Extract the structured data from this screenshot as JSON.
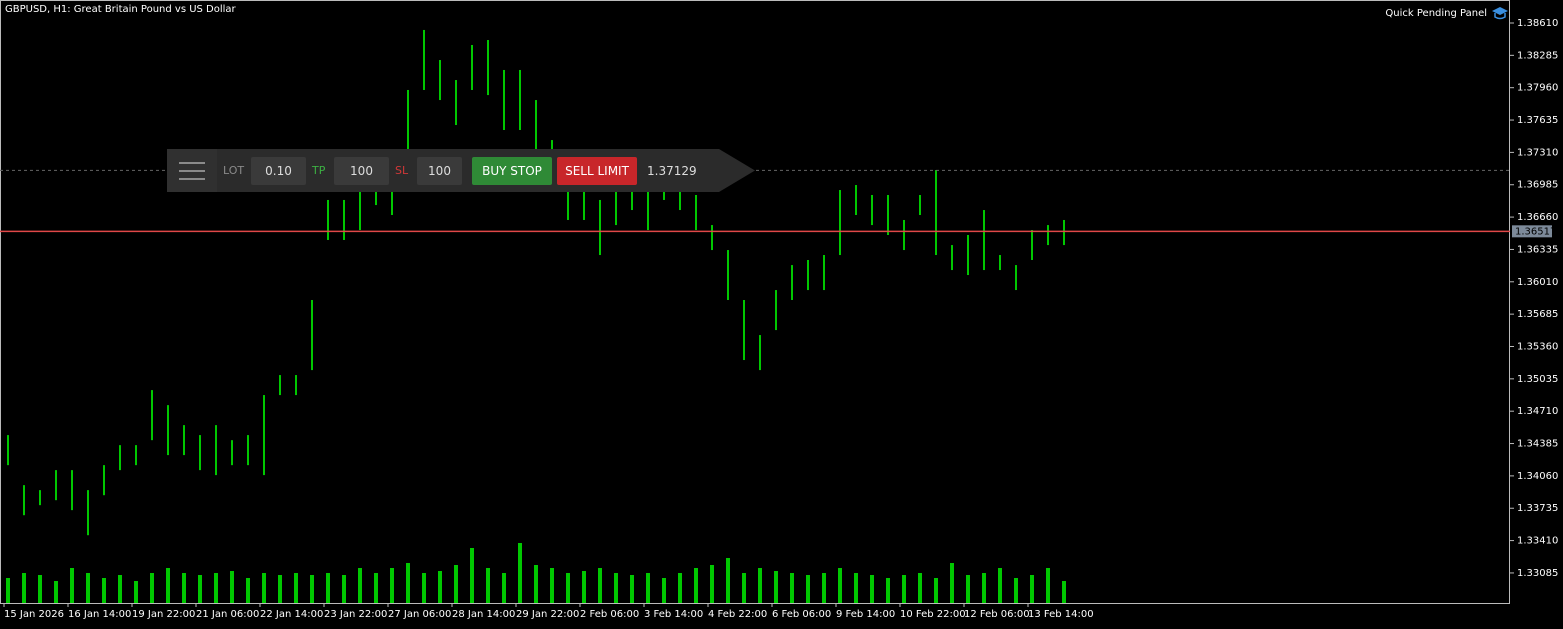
{
  "header": {
    "symbol": "GBPUSD, H1:  Great Britain Pound vs US Dollar",
    "tool": "Quick Pending Panel"
  },
  "panel": {
    "lot_label": "LOT",
    "lot_value": "0.10",
    "tp_label": "TP",
    "tp_value": "100",
    "sl_label": "SL",
    "sl_value": "100",
    "buy_button": "BUY STOP",
    "sell_button": "SELL LIMIT",
    "price": 1.37129
  },
  "chart_data": {
    "type": "ohlc",
    "color": "#00c800",
    "volume_color": "#00c800",
    "current_price": 1.36517,
    "current_price_color": "#e04848",
    "ylim": [
      1.32783,
      1.38841
    ],
    "yticks": [
      {
        "value": 1.3861,
        "label": "1.38610"
      },
      {
        "value": 1.38285,
        "label": "1.38285"
      },
      {
        "value": 1.3796,
        "label": "1.37960"
      },
      {
        "value": 1.37635,
        "label": "1.37635"
      },
      {
        "value": 1.3731,
        "label": "1.37310"
      },
      {
        "value": 1.36985,
        "label": "1.36985"
      },
      {
        "value": 1.3666,
        "label": "1.36660"
      },
      {
        "value": 1.36335,
        "label": "1.36335"
      },
      {
        "value": 1.3601,
        "label": "1.36010"
      },
      {
        "value": 1.35685,
        "label": "1.35685"
      },
      {
        "value": 1.3536,
        "label": "1.35360"
      },
      {
        "value": 1.35035,
        "label": "1.35035"
      },
      {
        "value": 1.3471,
        "label": "1.34710"
      },
      {
        "value": 1.34385,
        "label": "1.34385"
      },
      {
        "value": 1.3406,
        "label": "1.34060"
      },
      {
        "value": 1.33735,
        "label": "1.33735"
      },
      {
        "value": 1.3341,
        "label": "1.33410"
      },
      {
        "value": 1.33085,
        "label": "1.33085"
      }
    ],
    "categories": [
      "15 Jan 2026",
      null,
      null,
      null,
      "16 Jan 14:00",
      null,
      null,
      null,
      "19 Jan 22:00",
      null,
      null,
      null,
      "21 Jan 06:00",
      null,
      null,
      null,
      "22 Jan 14:00",
      null,
      null,
      null,
      "23 Jan 22:00",
      null,
      null,
      null,
      "27 Jan 06:00",
      null,
      null,
      null,
      "28 Jan 14:00",
      null,
      null,
      null,
      "29 Jan 22:00",
      null,
      null,
      null,
      "2 Feb 06:00",
      null,
      null,
      null,
      "3 Feb 14:00",
      null,
      null,
      null,
      "4 Feb 22:00",
      null,
      null,
      null,
      "6 Feb 06:00",
      null,
      null,
      null,
      "9 Feb 14:00",
      null,
      null,
      null,
      "10 Feb 22:00",
      null,
      null,
      null,
      "12 Feb 06:00",
      null,
      null,
      null,
      "13 Feb 14:00",
      null,
      null
    ],
    "high": [
      1.3447,
      1.33967,
      1.33917,
      1.34118,
      1.34118,
      1.33917,
      1.34168,
      1.34369,
      1.34369,
      1.34922,
      1.34771,
      1.3457,
      1.3447,
      1.3457,
      1.34419,
      1.3447,
      1.34872,
      1.35073,
      1.35073,
      1.35827,
      1.36832,
      1.36832,
      1.37032,
      1.36932,
      1.37133,
      1.37937,
      1.3854,
      1.38238,
      1.38037,
      1.38389,
      1.38439,
      1.38138,
      1.38138,
      1.37836,
      1.37434,
      1.36982,
      1.36932,
      1.36832,
      1.36932,
      1.37032,
      1.36932,
      1.37133,
      1.37083,
      1.36882,
      1.3658,
      1.36329,
      1.35827,
      1.35475,
      1.35927,
      1.36178,
      1.36229,
      1.36279,
      1.36932,
      1.36982,
      1.36882,
      1.36882,
      1.36631,
      1.36882,
      1.37133,
      1.36379,
      1.3648,
      1.36731,
      1.36279,
      1.36178,
      1.3653,
      1.3658,
      1.36631
    ],
    "low": [
      1.34168,
      1.33665,
      1.33766,
      1.33816,
      1.33716,
      1.33464,
      1.33866,
      1.34118,
      1.34168,
      1.34419,
      1.34269,
      1.34269,
      1.34118,
      1.34068,
      1.34168,
      1.34168,
      1.34068,
      1.34872,
      1.34872,
      1.35123,
      1.3643,
      1.3643,
      1.3653,
      1.36781,
      1.36681,
      1.37233,
      1.37937,
      1.37836,
      1.37585,
      1.37937,
      1.37886,
      1.37535,
      1.37535,
      1.37334,
      1.37032,
      1.36631,
      1.36631,
      1.36279,
      1.3658,
      1.36731,
      1.3653,
      1.36832,
      1.36731,
      1.3653,
      1.36329,
      1.35827,
      1.35224,
      1.35123,
      1.35525,
      1.35827,
      1.35927,
      1.35927,
      1.36279,
      1.36681,
      1.3658,
      1.3648,
      1.36329,
      1.36681,
      1.36279,
      1.36128,
      1.36078,
      1.36128,
      1.36128,
      1.35927,
      1.36229,
      1.36379,
      1.36379
    ],
    "volume": [
      25,
      30,
      28,
      22,
      35,
      30,
      25,
      28,
      22,
      30,
      35,
      30,
      28,
      30,
      32,
      25,
      30,
      28,
      30,
      28,
      30,
      28,
      35,
      30,
      35,
      40,
      30,
      32,
      38,
      55,
      35,
      30,
      60,
      38,
      35,
      30,
      32,
      35,
      30,
      28,
      30,
      25,
      30,
      35,
      38,
      45,
      30,
      35,
      32,
      30,
      28,
      30,
      35,
      30,
      28,
      25,
      28,
      30,
      25,
      40,
      28,
      30,
      35,
      25,
      28,
      35,
      22
    ]
  }
}
